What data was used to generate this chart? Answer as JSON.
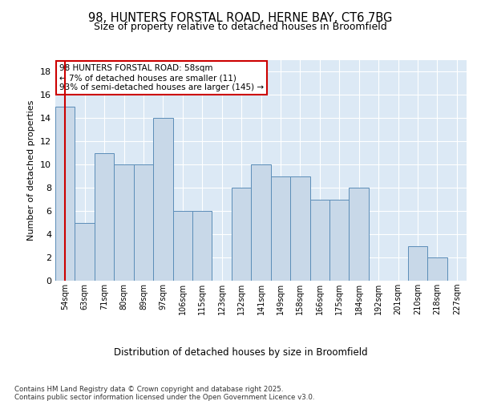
{
  "title_line1": "98, HUNTERS FORSTAL ROAD, HERNE BAY, CT6 7BG",
  "title_line2": "Size of property relative to detached houses in Broomfield",
  "xlabel": "Distribution of detached houses by size in Broomfield",
  "ylabel": "Number of detached properties",
  "categories": [
    "54sqm",
    "63sqm",
    "71sqm",
    "80sqm",
    "89sqm",
    "97sqm",
    "106sqm",
    "115sqm",
    "123sqm",
    "132sqm",
    "141sqm",
    "149sqm",
    "158sqm",
    "166sqm",
    "175sqm",
    "184sqm",
    "192sqm",
    "201sqm",
    "210sqm",
    "218sqm",
    "227sqm"
  ],
  "values": [
    15,
    5,
    11,
    10,
    10,
    14,
    6,
    6,
    0,
    8,
    10,
    9,
    9,
    7,
    7,
    8,
    0,
    0,
    3,
    2,
    0
  ],
  "bar_color": "#c8d8e8",
  "bar_edge_color": "#5b8db8",
  "highlight_index": 0,
  "highlight_color": "#cc0000",
  "background_color": "#dce9f5",
  "annotation_text": "98 HUNTERS FORSTAL ROAD: 58sqm\n← 7% of detached houses are smaller (11)\n93% of semi-detached houses are larger (145) →",
  "annotation_box_color": "#ffffff",
  "annotation_border_color": "#cc0000",
  "footer_text": "Contains HM Land Registry data © Crown copyright and database right 2025.\nContains public sector information licensed under the Open Government Licence v3.0.",
  "ylim": [
    0,
    19
  ],
  "yticks": [
    0,
    2,
    4,
    6,
    8,
    10,
    12,
    14,
    16,
    18
  ]
}
